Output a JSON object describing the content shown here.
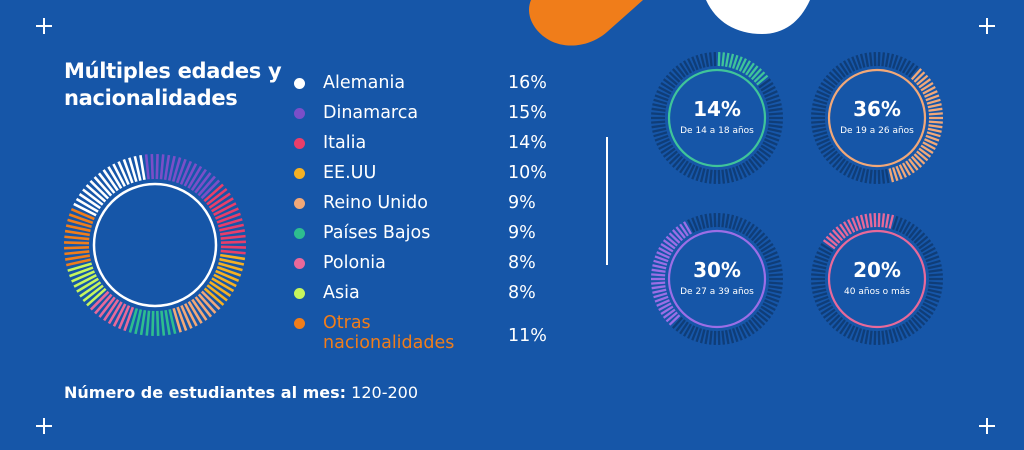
{
  "title": "Múltiples edades y nacionalidades",
  "footer": {
    "label": "Número de estudiantes al mes:",
    "value": "120-200"
  },
  "colors": {
    "background": "#1656a8",
    "ring_track": "#0f3d78",
    "accent_orange": "#f07d1a",
    "ring_outline": "#ffffff"
  },
  "chart_data": [
    {
      "type": "pie",
      "title": "Múltiples edades y nacionalidades",
      "categories": [
        "Alemania",
        "Dinamarca",
        "Italia",
        "EE.UU",
        "Reino Unido",
        "Países Bajos",
        "Polonia",
        "Asia",
        "Otras nacionalidades"
      ],
      "labels": [
        "16%",
        "15%",
        "14%",
        "10%",
        "9%",
        "9%",
        "8%",
        "8%",
        "11%"
      ],
      "values": [
        16,
        15,
        14,
        10,
        9,
        9,
        8,
        8,
        11
      ],
      "colors": [
        "#ffffff",
        "#7a4fc8",
        "#e83e6a",
        "#f5b023",
        "#f2a878",
        "#2ebd8f",
        "#e8699a",
        "#c6f55d",
        "#f07d1a"
      ]
    },
    {
      "type": "pie",
      "label": "De 14 a 18 años",
      "value_label": "14%",
      "value": 14,
      "color": "#3fc49a",
      "outline": "#3fc49a",
      "start_deg": 0
    },
    {
      "type": "pie",
      "label": "De 19 a 26 años",
      "value_label": "36%",
      "value": 36,
      "color": "#f2a878",
      "outline": "#f2a878",
      "start_deg": 40
    },
    {
      "type": "pie",
      "label": "De 27 a 39 años",
      "value_label": "30%",
      "value": 30,
      "color": "#9b6ee6",
      "outline": "#9b6ee6",
      "start_deg": 225
    },
    {
      "type": "pie",
      "label": "40  años o más",
      "value_label": "20%",
      "value": 20,
      "color": "#e8699a",
      "outline": "#e8699a",
      "start_deg": 305
    }
  ]
}
